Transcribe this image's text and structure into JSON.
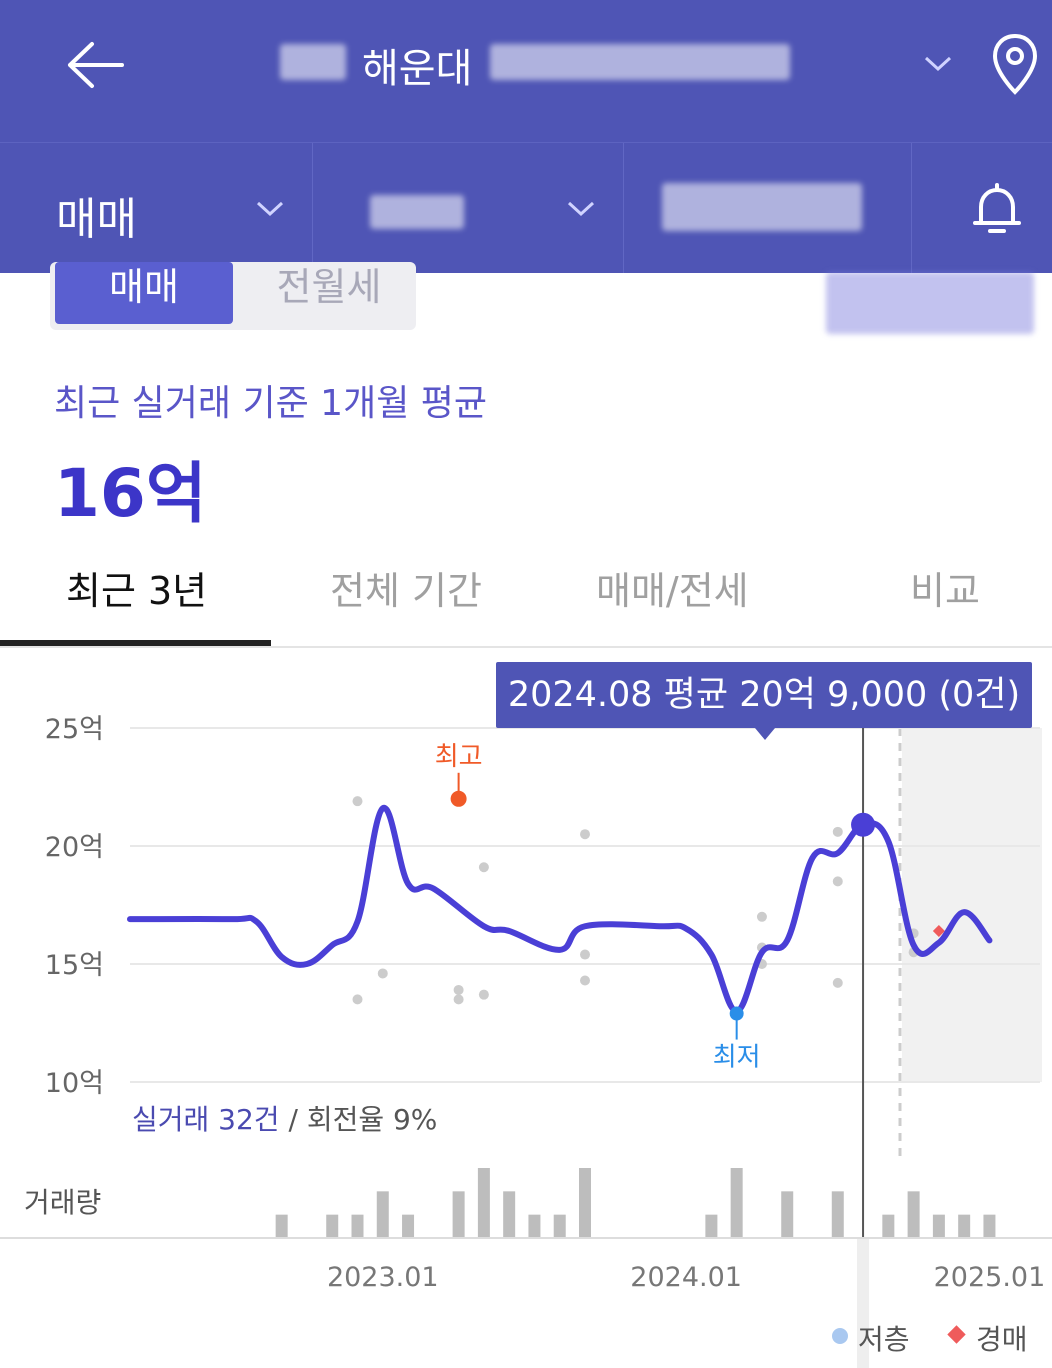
{
  "header": {
    "title": "해운대",
    "back_icon": "arrow-left-icon",
    "dropdown_icon": "chevron-down-icon",
    "location_icon": "map-pin-icon"
  },
  "filters": {
    "deal_type": "매매",
    "bell_icon": "bell-icon"
  },
  "segment": {
    "active": "매매",
    "inactive": "전월세"
  },
  "summary": {
    "subtitle": "최근 실거래 기준 1개월 평균",
    "value": "16억"
  },
  "tabs": [
    {
      "label": "최근 3년",
      "active": true
    },
    {
      "label": "전체 기간",
      "active": false
    },
    {
      "label": "매매/전세",
      "active": false
    },
    {
      "label": "비교",
      "active": false
    }
  ],
  "tooltip": {
    "text": "2024.08 평균 20억 9,000 (0건)"
  },
  "stats": {
    "transactions": "실거래 32건",
    "separator": " / ",
    "turnover": "회전율 9%"
  },
  "legend": {
    "low_floor": "저층",
    "auction": "경매"
  },
  "colors": {
    "brand": "#4f55b5",
    "line": "#4a3fd6",
    "high_marker": "#f05a28",
    "low_marker": "#2a8ee8",
    "volume_bar": "#bdbdbd",
    "auction": "#ef5b5b",
    "low_floor": "#a9c8f0"
  },
  "chart_data": {
    "type": "line",
    "x_range": [
      "2022.03",
      "2025.03"
    ],
    "ylim": [
      10,
      25
    ],
    "y_ticks": [
      "25억",
      "20억",
      "15억",
      "10억"
    ],
    "y_tick_values": [
      25,
      20,
      15,
      10
    ],
    "x_ticks": [
      "2023.01",
      "2024.01",
      "2025.01"
    ],
    "x_tick_values": [
      "2023.01",
      "2024.01",
      "2025.01"
    ],
    "volume_label": "거래량",
    "high_label": "최고",
    "low_label": "최저",
    "high": {
      "x": "2023.04",
      "y": 22.0
    },
    "low": {
      "x": "2024.03",
      "y": 12.9
    },
    "selected": {
      "x": "2024.08",
      "y": 20.9
    },
    "series": [
      {
        "points": [
          [
            "2022.03",
            16.9
          ],
          [
            "2022.07",
            16.9
          ],
          [
            "2022.08",
            16.8
          ],
          [
            "2022.09",
            15.3
          ],
          [
            "2022.10",
            15.0
          ],
          [
            "2022.11",
            15.8
          ],
          [
            "2022.12",
            16.8
          ],
          [
            "2023.01",
            21.6
          ],
          [
            "2023.02",
            18.4
          ],
          [
            "2023.03",
            18.2
          ],
          [
            "2023.05",
            16.6
          ],
          [
            "2023.06",
            16.4
          ],
          [
            "2023.08",
            15.6
          ],
          [
            "2023.09",
            16.6
          ],
          [
            "2023.12",
            16.6
          ],
          [
            "2024.01",
            16.5
          ],
          [
            "2024.02",
            15.4
          ],
          [
            "2024.03",
            13.0
          ],
          [
            "2024.04",
            15.5
          ],
          [
            "2024.05",
            16.0
          ],
          [
            "2024.06",
            19.5
          ],
          [
            "2024.07",
            19.7
          ],
          [
            "2024.08",
            20.9
          ],
          [
            "2024.09",
            20.2
          ],
          [
            "2024.10",
            15.8
          ],
          [
            "2024.11",
            15.9
          ],
          [
            "2024.12",
            17.2
          ],
          [
            "2025.01",
            16.0
          ]
        ]
      }
    ],
    "transactions": [
      {
        "x": "2022.12",
        "y": 21.9
      },
      {
        "x": "2023.04",
        "y": 22.0
      },
      {
        "x": "2023.05",
        "y": 19.1
      },
      {
        "x": "2023.09",
        "y": 20.5
      },
      {
        "x": "2023.01",
        "y": 14.6
      },
      {
        "x": "2022.12",
        "y": 13.5
      },
      {
        "x": "2023.04",
        "y": 13.9
      },
      {
        "x": "2023.04",
        "y": 13.5
      },
      {
        "x": "2023.05",
        "y": 13.7
      },
      {
        "x": "2023.09",
        "y": 15.4
      },
      {
        "x": "2023.09",
        "y": 14.3
      },
      {
        "x": "2024.04",
        "y": 17.0
      },
      {
        "x": "2024.04",
        "y": 15.7
      },
      {
        "x": "2024.04",
        "y": 15.0
      },
      {
        "x": "2024.07",
        "y": 20.6
      },
      {
        "x": "2024.07",
        "y": 18.5
      },
      {
        "x": "2024.07",
        "y": 14.2
      },
      {
        "x": "2024.10",
        "y": 16.3
      },
      {
        "x": "2024.10",
        "y": 15.5
      }
    ],
    "auction_points": [
      {
        "x": "2024.11",
        "y": 16.4
      }
    ],
    "volume": [
      [
        "2022.09",
        1
      ],
      [
        "2022.11",
        1
      ],
      [
        "2022.12",
        1
      ],
      [
        "2023.01",
        2
      ],
      [
        "2023.02",
        1
      ],
      [
        "2023.04",
        2
      ],
      [
        "2023.05",
        3
      ],
      [
        "2023.06",
        2
      ],
      [
        "2023.07",
        1
      ],
      [
        "2023.08",
        1
      ],
      [
        "2023.09",
        3
      ],
      [
        "2024.02",
        1
      ],
      [
        "2024.03",
        3
      ],
      [
        "2024.05",
        2
      ],
      [
        "2024.07",
        2
      ],
      [
        "2024.09",
        1
      ],
      [
        "2024.10",
        2
      ],
      [
        "2024.11",
        1
      ],
      [
        "2024.12",
        1
      ],
      [
        "2025.01",
        1
      ]
    ],
    "grid": true,
    "legend_position": "bottom-right"
  }
}
